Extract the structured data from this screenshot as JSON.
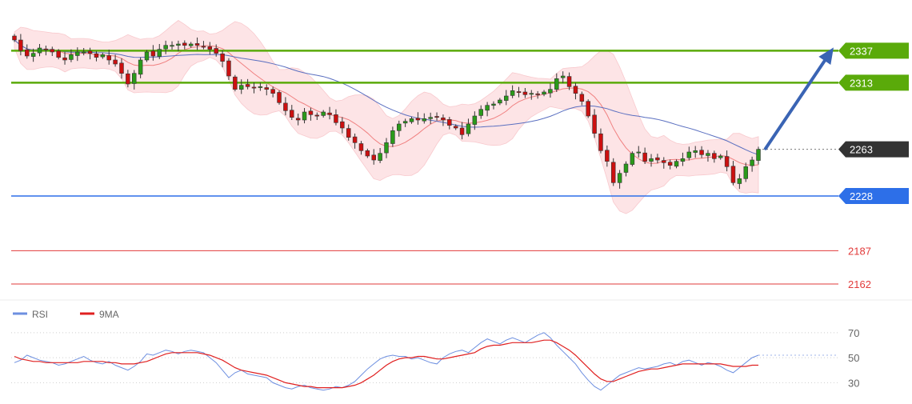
{
  "colors": {
    "support_resistance_green": "#5aaa0a",
    "current_price_box": "#333333",
    "support_blue": "#2d6fe8",
    "lower_level_red": "#e23a3a",
    "bollinger_fill": "#fde4e6",
    "bollinger_mid": "#f08080",
    "ma_blue": "#5a6fc0",
    "candle_up": "#2a9a1a",
    "candle_down": "#cc1010",
    "arrow": "#3a64b4",
    "rsi_line": "#6d8fe0",
    "rsi_ma_line": "#e02020"
  },
  "chart_data": [
    {
      "type": "candlestick",
      "title": "",
      "y_range": [
        2150,
        2375
      ],
      "price_levels": [
        {
          "label": "2337",
          "value": 2337,
          "style": "resistance",
          "color": "#5aaa0a"
        },
        {
          "label": "2313",
          "value": 2313,
          "style": "resistance",
          "color": "#5aaa0a"
        },
        {
          "label": "2263",
          "value": 2263,
          "style": "current",
          "color": "#333333"
        },
        {
          "label": "2228",
          "value": 2228,
          "style": "support",
          "color": "#2d6fe8"
        },
        {
          "label": "2187",
          "value": 2187,
          "style": "lower",
          "color": "#e23a3a"
        },
        {
          "label": "2162",
          "value": 2162,
          "style": "lower",
          "color": "#e23a3a"
        }
      ],
      "close_path": [
        2345,
        2337,
        2333,
        2335,
        2339,
        2338,
        2336,
        2332,
        2330,
        2334,
        2336,
        2336,
        2335,
        2332,
        2334,
        2330,
        2327,
        2320,
        2312,
        2320,
        2330,
        2336,
        2333,
        2338,
        2341,
        2341,
        2342,
        2341,
        2342,
        2341,
        2340,
        2338,
        2335,
        2329,
        2318,
        2308,
        2311,
        2310,
        2309,
        2310,
        2308,
        2305,
        2298,
        2292,
        2287,
        2285,
        2291,
        2289,
        2288,
        2291,
        2289,
        2283,
        2279,
        2272,
        2268,
        2262,
        2258,
        2255,
        2260,
        2268,
        2277,
        2282,
        2284,
        2286,
        2285,
        2286,
        2287,
        2287,
        2285,
        2281,
        2279,
        2274,
        2282,
        2288,
        2293,
        2296,
        2297,
        2300,
        2303,
        2307,
        2306,
        2304,
        2305,
        2304,
        2306,
        2308,
        2316,
        2318,
        2310,
        2305,
        2299,
        2288,
        2275,
        2262,
        2254,
        2238,
        2245,
        2252,
        2260,
        2261,
        2254,
        2256,
        2255,
        2253,
        2251,
        2254,
        2256,
        2261,
        2262,
        2259,
        2260,
        2256,
        2258,
        2250,
        2238,
        2241,
        2250,
        2255,
        2263
      ],
      "bollinger": {
        "upper_offset": 22,
        "lower_offset": 22
      },
      "projection": {
        "from": 2263,
        "to": 2337
      }
    },
    {
      "type": "line",
      "legend": [
        {
          "name": "RSI",
          "color": "#6d8fe0"
        },
        {
          "name": "9MA",
          "color": "#e02020"
        }
      ],
      "y_ticks": [
        70,
        50,
        30
      ],
      "y_range": [
        20,
        75
      ],
      "series": [
        {
          "name": "RSI",
          "values": [
            46,
            48,
            52,
            50,
            48,
            47,
            46,
            44,
            45,
            47,
            49,
            51,
            48,
            46,
            45,
            47,
            44,
            42,
            40,
            43,
            47,
            53,
            52,
            54,
            56,
            55,
            53,
            55,
            56,
            55,
            54,
            50,
            46,
            40,
            34,
            38,
            40,
            37,
            36,
            35,
            34,
            30,
            28,
            26,
            25,
            27,
            28,
            26,
            25,
            24,
            25,
            27,
            26,
            28,
            31,
            36,
            41,
            45,
            49,
            51,
            52,
            51,
            51,
            49,
            50,
            48,
            46,
            45,
            50,
            53,
            55,
            56,
            54,
            58,
            62,
            65,
            63,
            61,
            64,
            66,
            64,
            62,
            65,
            68,
            70,
            66,
            60,
            55,
            50,
            45,
            38,
            32,
            27,
            24,
            28,
            32,
            36,
            38,
            40,
            42,
            41,
            42,
            43,
            45,
            46,
            44,
            47,
            48,
            46,
            44,
            46,
            45,
            43,
            40,
            38,
            42,
            46,
            50,
            52
          ]
        },
        {
          "name": "9MA",
          "values": [
            51,
            49,
            48,
            47,
            47,
            46,
            46,
            46,
            46,
            46,
            46,
            47,
            47,
            47,
            47,
            46,
            46,
            45,
            45,
            45,
            46,
            47,
            49,
            51,
            53,
            54,
            54,
            54,
            54,
            54,
            53,
            52,
            50,
            48,
            45,
            42,
            40,
            39,
            38,
            37,
            36,
            34,
            32,
            30,
            29,
            28,
            27,
            27,
            26,
            26,
            26,
            26,
            26,
            27,
            28,
            30,
            33,
            36,
            40,
            44,
            47,
            49,
            50,
            50,
            51,
            51,
            50,
            49,
            49,
            50,
            51,
            52,
            53,
            54,
            57,
            59,
            60,
            60,
            61,
            62,
            62,
            62,
            62,
            63,
            64,
            64,
            62,
            59,
            56,
            52,
            47,
            42,
            37,
            33,
            31,
            31,
            33,
            35,
            37,
            39,
            40,
            41,
            41,
            42,
            43,
            44,
            45,
            45,
            45,
            45,
            45,
            45,
            45,
            44,
            43,
            43,
            43,
            44,
            44
          ]
        }
      ]
    }
  ]
}
